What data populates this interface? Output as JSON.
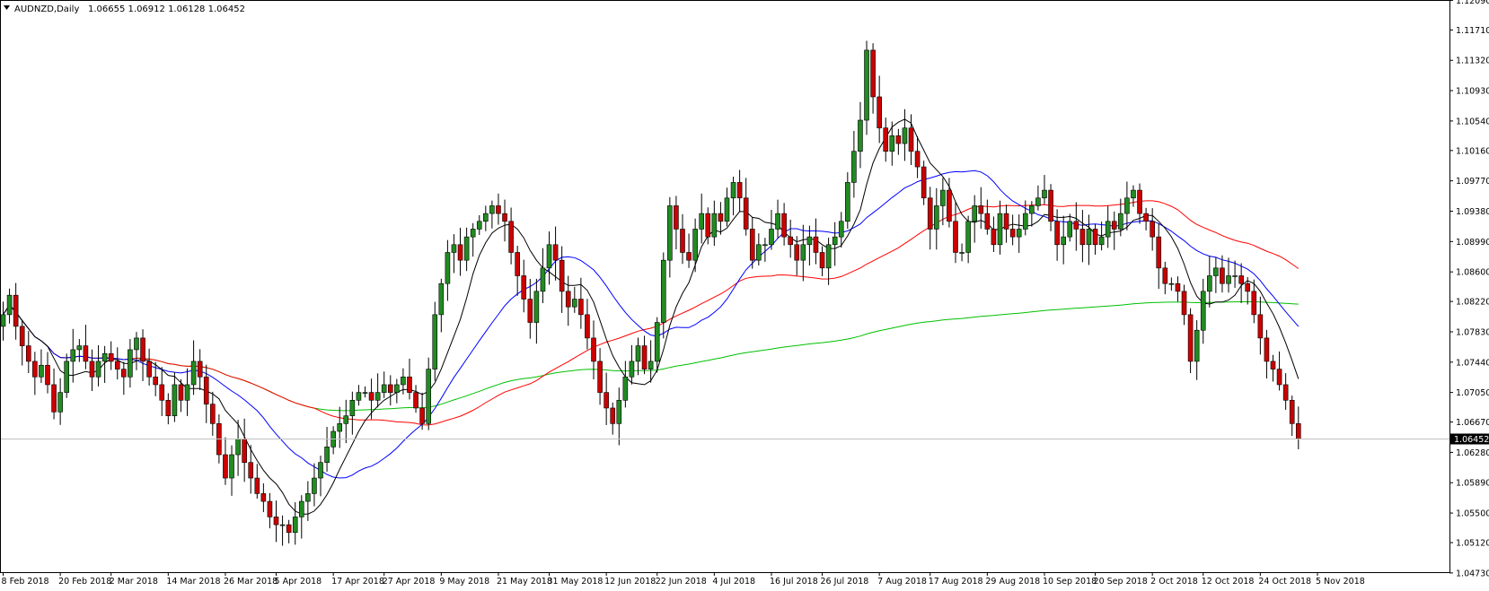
{
  "header": {
    "symbol": "AUDNZD,Daily",
    "ohlc": "1.06655 1.06912 1.06128 1.06452"
  },
  "colors": {
    "bull": "#228B22",
    "bear": "#cc0000",
    "wick": "#000000",
    "ma_black": "#000000",
    "ma_blue": "#0000ff",
    "ma_red": "#ff0000",
    "ma_green": "#00c000",
    "price_line": "#c0c0c0",
    "price_tag_bg": "#000000",
    "price_tag_text": "#ffffff"
  },
  "chart_data": {
    "type": "candlestick",
    "title": "AUDNZD,Daily",
    "ylim": [
      1.0474,
      1.12095
    ],
    "y_ticks": [
      "1.12090",
      "1.11710",
      "1.11320",
      "1.10930",
      "1.10540",
      "1.10160",
      "1.09770",
      "1.09380",
      "1.08990",
      "1.08600",
      "1.08220",
      "1.07830",
      "1.07440",
      "1.07050",
      "1.06670",
      "1.06280",
      "1.05890",
      "1.05500",
      "1.05120",
      "1.04730"
    ],
    "y_tick_values": [
      1.1209,
      1.1171,
      1.1132,
      1.1093,
      1.1054,
      1.1016,
      1.0977,
      1.0938,
      1.0899,
      1.086,
      1.0822,
      1.0783,
      1.0744,
      1.0705,
      1.0667,
      1.0628,
      1.0589,
      1.055,
      1.0512,
      1.0473
    ],
    "x_labels": [
      "8 Feb 2018",
      "20 Feb 2018",
      "2 Mar 2018",
      "14 Mar 2018",
      "26 Mar 2018",
      "5 Apr 2018",
      "17 Apr 2018",
      "27 Apr 2018",
      "9 May 2018",
      "21 May 2018",
      "31 May 2018",
      "12 Jun 2018",
      "22 Jun 2018",
      "4 Jul 2018",
      "16 Jul 2018",
      "26 Jul 2018",
      "7 Aug 2018",
      "17 Aug 2018",
      "29 Aug 2018",
      "10 Sep 2018",
      "20 Sep 2018",
      "2 Oct 2018",
      "12 Oct 2018",
      "24 Oct 2018",
      "5 Nov 2018"
    ],
    "x_label_bars": [
      0,
      9,
      17,
      26,
      35,
      43,
      52,
      60,
      69,
      78,
      86,
      95,
      103,
      112,
      121,
      129,
      138,
      146,
      155,
      164,
      172,
      181,
      189,
      198,
      207
    ],
    "current_price": "1.06452",
    "current_price_value": 1.06452,
    "closes": [
      1.0805,
      1.083,
      1.079,
      1.0765,
      1.0745,
      1.0725,
      1.074,
      1.0715,
      1.068,
      1.0705,
      1.0745,
      1.076,
      1.0765,
      1.0745,
      1.0725,
      1.0745,
      1.0755,
      1.0745,
      1.0735,
      1.0725,
      1.076,
      1.0775,
      1.0745,
      1.0725,
      1.0715,
      1.0695,
      1.0675,
      1.0715,
      1.0695,
      1.0715,
      1.0745,
      1.0725,
      1.069,
      1.0665,
      1.0625,
      1.0595,
      1.0625,
      1.0645,
      1.0615,
      1.0595,
      1.0575,
      1.0565,
      1.0545,
      1.0535,
      1.0535,
      1.0525,
      1.0545,
      1.0565,
      1.0575,
      1.0595,
      1.0615,
      1.0635,
      1.0655,
      1.0665,
      1.0675,
      1.0695,
      1.0705,
      1.0705,
      1.0695,
      1.0705,
      1.0715,
      1.0705,
      1.0715,
      1.0725,
      1.0705,
      1.0685,
      1.0665,
      1.0735,
      1.0805,
      1.0845,
      1.0885,
      1.0895,
      1.0875,
      1.0905,
      1.0915,
      1.0925,
      1.0935,
      1.0945,
      1.0935,
      1.0925,
      1.0885,
      1.0855,
      1.0825,
      1.0795,
      1.0835,
      1.0865,
      1.0895,
      1.0875,
      1.0835,
      1.0815,
      1.0825,
      1.0805,
      1.0775,
      1.0745,
      1.0705,
      1.0685,
      1.0665,
      1.0695,
      1.0725,
      1.0745,
      1.0765,
      1.0735,
      1.0745,
      1.0795,
      1.0875,
      1.0945,
      1.0915,
      1.0885,
      1.0875,
      1.0915,
      1.0935,
      1.0905,
      1.0935,
      1.0925,
      1.0955,
      1.0975,
      1.0955,
      1.0915,
      1.0875,
      1.0895,
      1.0895,
      1.0915,
      1.0935,
      1.0905,
      1.0895,
      1.0875,
      1.0895,
      1.0905,
      1.0885,
      1.0865,
      1.0895,
      1.0905,
      1.0925,
      1.0975,
      1.1015,
      1.1055,
      1.1145,
      1.1085,
      1.1045,
      1.1015,
      1.1035,
      1.1025,
      1.1045,
      1.1015,
      1.0995,
      1.0955,
      1.0915,
      1.0945,
      1.0965,
      1.0925,
      1.0885,
      1.0885,
      1.0925,
      1.0945,
      1.0935,
      1.0915,
      1.0895,
      1.0935,
      1.0915,
      1.0905,
      1.0915,
      1.0935,
      1.0945,
      1.0955,
      1.0965,
      1.0925,
      1.0895,
      1.0905,
      1.0925,
      1.0915,
      1.0895,
      1.0915,
      1.0895,
      1.0905,
      1.0925,
      1.0915,
      1.0935,
      1.0955,
      1.0965,
      1.0935,
      1.0925,
      1.0905,
      1.0865,
      1.0845,
      1.0845,
      1.0835,
      1.0805,
      1.0745,
      1.0785,
      1.0835,
      1.0855,
      1.0865,
      1.0845,
      1.0855,
      1.0855,
      1.0845,
      1.0835,
      1.0805,
      1.0775,
      1.0745,
      1.0735,
      1.0715,
      1.0695,
      1.0665,
      1.0645
    ],
    "series": [
      {
        "name": "",
        "kind": "candles",
        "color": "mixed"
      },
      {
        "name": "",
        "kind": "moving-average",
        "period": 8,
        "color": "#000000"
      },
      {
        "name": "",
        "kind": "moving-average",
        "period": 21,
        "color": "#0000ff"
      },
      {
        "name": "",
        "kind": "moving-average",
        "period": 50,
        "color": "#ff0000"
      },
      {
        "name": "",
        "kind": "moving-average",
        "period": 200,
        "color": "#00c000"
      }
    ],
    "grid": false,
    "legend": "none"
  }
}
